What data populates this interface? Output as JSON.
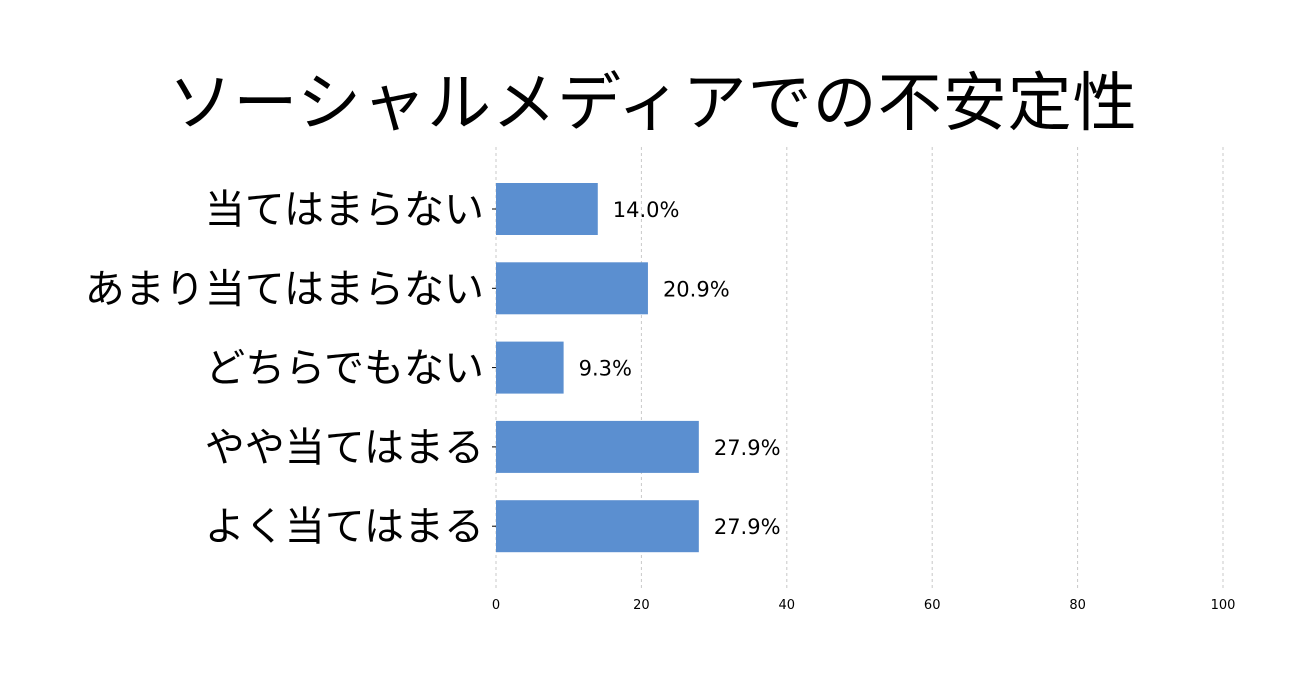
{
  "chart_data": {
    "type": "bar",
    "orientation": "horizontal",
    "title": "ソーシャルメディアでの不安定性",
    "categories": [
      "当てはまらない",
      "あまり当てはまらない",
      "どちらでもない",
      "やや当てはまる",
      "よく当てはまる"
    ],
    "values": [
      14.0,
      20.9,
      9.3,
      27.9,
      27.9
    ],
    "value_labels": [
      "14.0%",
      "20.9%",
      "9.3%",
      "27.9%",
      "27.9%"
    ],
    "xlim": [
      0,
      100
    ],
    "xticks": [
      "0",
      "20",
      "40",
      "60",
      "80",
      "100"
    ],
    "xlabel": "",
    "ylabel": "",
    "grid": "vertical-dashed",
    "bar_color": "#5b8fd0"
  }
}
